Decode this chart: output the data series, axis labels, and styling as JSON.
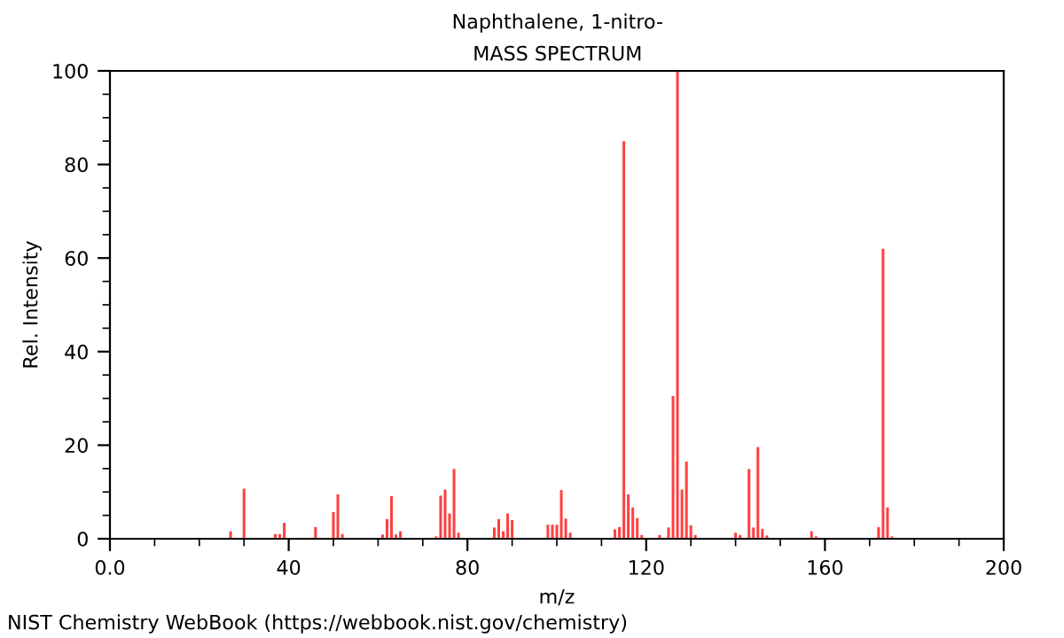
{
  "chart_data": {
    "type": "bar",
    "title": "Naphthalene, 1-nitro-",
    "subtitle": "MASS SPECTRUM",
    "xlabel": "m/z",
    "ylabel": "Rel. Intensity",
    "annotations": [
      "NIST Chemistry WebBook (https://webbook.nist.gov/chemistry)"
    ],
    "x": [
      27,
      30,
      37,
      38,
      39,
      46,
      50,
      51,
      52,
      61,
      62,
      63,
      64,
      65,
      73,
      74,
      75,
      76,
      77,
      78,
      86,
      87,
      88,
      89,
      90,
      98,
      99,
      100,
      101,
      102,
      103,
      113,
      114,
      115,
      116,
      117,
      118,
      119,
      123,
      125,
      126,
      127,
      128,
      129,
      130,
      131,
      140,
      141,
      143,
      144,
      145,
      146,
      147,
      157,
      158,
      172,
      173,
      174,
      175
    ],
    "values": [
      1.6,
      10.7,
      1.0,
      1.0,
      3.4,
      2.5,
      5.7,
      9.5,
      1.0,
      0.9,
      4.2,
      9.1,
      0.9,
      1.6,
      0.5,
      9.2,
      10.5,
      5.4,
      14.9,
      1.3,
      2.4,
      4.2,
      1.6,
      5.4,
      4.0,
      3.0,
      3.0,
      3.0,
      10.4,
      4.3,
      1.3,
      2.0,
      2.5,
      85,
      9.5,
      6.7,
      4.4,
      0.8,
      0.8,
      2.4,
      30.5,
      100,
      10.5,
      16.5,
      2.9,
      0.8,
      1.3,
      0.8,
      14.9,
      2.4,
      19.6,
      2.1,
      0.7,
      1.6,
      0.5,
      2.5,
      62,
      6.7,
      0.5
    ],
    "color": "#ff4040",
    "xlim": [
      0,
      200
    ],
    "ylim": [
      0,
      100
    ],
    "xticks": [
      {
        "value": 0,
        "label": "0.0"
      },
      {
        "value": 10,
        "label": null
      },
      {
        "value": 20,
        "label": null
      },
      {
        "value": 30,
        "label": null
      },
      40,
      {
        "value": 50,
        "label": null
      },
      {
        "value": 60,
        "label": null
      },
      {
        "value": 70,
        "label": null
      },
      80,
      {
        "value": 90,
        "label": null
      },
      {
        "value": 100,
        "label": null
      },
      {
        "value": 110,
        "label": null
      },
      120,
      {
        "value": 130,
        "label": null
      },
      {
        "value": 140,
        "label": null
      },
      {
        "value": 150,
        "label": null
      },
      160,
      {
        "value": 170,
        "label": null
      },
      {
        "value": 180,
        "label": null
      },
      {
        "value": 190,
        "label": null
      },
      200
    ],
    "yticks": [
      0,
      {
        "value": 5,
        "label": null
      },
      {
        "value": 10,
        "label": null
      },
      {
        "value": 15,
        "label": null
      },
      20,
      {
        "value": 25,
        "label": null
      },
      {
        "value": 30,
        "label": null
      },
      {
        "value": 35,
        "label": null
      },
      40,
      {
        "value": 45,
        "label": null
      },
      {
        "value": 50,
        "label": null
      },
      {
        "value": 55,
        "label": null
      },
      60,
      {
        "value": 65,
        "label": null
      },
      {
        "value": 70,
        "label": null
      },
      {
        "value": 75,
        "label": null
      },
      80,
      {
        "value": 85,
        "label": null
      },
      {
        "value": 90,
        "label": null
      },
      {
        "value": 95,
        "label": null
      },
      100
    ],
    "grid": false,
    "legend": false
  }
}
